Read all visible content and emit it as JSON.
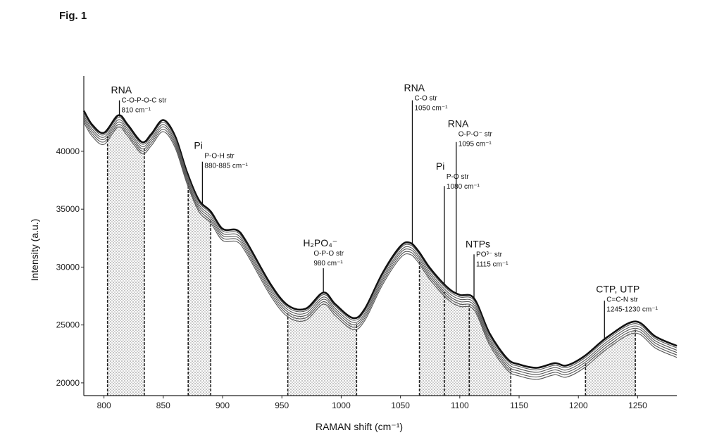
{
  "figure": {
    "label": "Fig. 1"
  },
  "chart_data": {
    "type": "line",
    "xlabel": "RAMAN shift (cm⁻¹)",
    "ylabel": "Intensity (a.u.)",
    "xlim": [
      783,
      1283
    ],
    "ylim": [
      18900,
      46500
    ],
    "x_ticks": [
      800,
      850,
      900,
      950,
      1000,
      1050,
      1100,
      1150,
      1200,
      1250
    ],
    "x_tick_labels": [
      "800",
      "850",
      "900",
      "950",
      "1000",
      "1050",
      "1100",
      "1150",
      "1200",
      "1250"
    ],
    "y_ticks": [
      20000,
      25000,
      30000,
      35000,
      40000
    ],
    "y_tick_labels": [
      "20000",
      "25000",
      "30000",
      "35000",
      "40000"
    ],
    "series_count": 6,
    "spectrum_points": [
      [
        783,
        43500
      ],
      [
        790,
        42300
      ],
      [
        800,
        41600
      ],
      [
        812,
        43100
      ],
      [
        820,
        42300
      ],
      [
        832,
        40800
      ],
      [
        840,
        41500
      ],
      [
        850,
        42700
      ],
      [
        860,
        41300
      ],
      [
        870,
        38200
      ],
      [
        880,
        35800
      ],
      [
        890,
        34800
      ],
      [
        900,
        33300
      ],
      [
        912,
        33200
      ],
      [
        920,
        32200
      ],
      [
        940,
        28600
      ],
      [
        955,
        26700
      ],
      [
        970,
        26400
      ],
      [
        985,
        27800
      ],
      [
        995,
        26800
      ],
      [
        1010,
        25600
      ],
      [
        1020,
        26400
      ],
      [
        1035,
        29500
      ],
      [
        1050,
        31800
      ],
      [
        1058,
        32100
      ],
      [
        1065,
        31400
      ],
      [
        1075,
        29900
      ],
      [
        1090,
        28200
      ],
      [
        1100,
        27600
      ],
      [
        1112,
        27300
      ],
      [
        1125,
        24300
      ],
      [
        1140,
        22100
      ],
      [
        1150,
        21600
      ],
      [
        1165,
        21300
      ],
      [
        1180,
        21700
      ],
      [
        1190,
        21500
      ],
      [
        1205,
        22300
      ],
      [
        1225,
        24000
      ],
      [
        1248,
        25300
      ],
      [
        1265,
        24000
      ],
      [
        1283,
        23200
      ]
    ],
    "series_offsets": [
      0,
      -180,
      -380,
      -580,
      -790,
      -1000
    ],
    "shaded_regions": [
      [
        803,
        834
      ],
      [
        871,
        890
      ],
      [
        955,
        1013
      ],
      [
        1066,
        1087
      ],
      [
        1087,
        1108
      ],
      [
        1108,
        1143
      ],
      [
        1206,
        1248
      ]
    ],
    "annotation_lines": [
      {
        "x": 813,
        "y_top": 44400
      },
      {
        "x": 883,
        "y_top": 39100
      },
      {
        "x": 985,
        "y_top": 29900
      },
      {
        "x": 1060,
        "y_top": 44400
      },
      {
        "x": 1087,
        "y_top": 37000
      },
      {
        "x": 1097,
        "y_top": 40800
      },
      {
        "x": 1112,
        "y_top": 31100
      },
      {
        "x": 1222,
        "y_top": 27100
      }
    ],
    "annotations": [
      {
        "group": "RNA",
        "lines": [
          "C-O-P-O-C str",
          "810 cm⁻¹"
        ],
        "anchor_x": 813,
        "title_y": 45000
      },
      {
        "group": "Pi",
        "lines": [
          "P-O-H str",
          "880-885 cm⁻¹"
        ],
        "anchor_x": 883,
        "title_y": 40200
      },
      {
        "group": "H₂PO₄⁻",
        "lines": [
          "O-P-O str",
          "980 cm⁻¹"
        ],
        "anchor_x": 975,
        "title_y": 31800
      },
      {
        "group": "RNA",
        "lines": [
          "C-O str",
          "1050 cm⁻¹"
        ],
        "anchor_x": 1060,
        "title_y": 45200
      },
      {
        "group": "Pi",
        "lines": [
          "P-O str",
          "1080 cm⁻¹"
        ],
        "anchor_x": 1087,
        "title_y": 38400
      },
      {
        "group": "RNA",
        "lines": [
          "O-P-O⁻ str",
          "1095 cm⁻¹"
        ],
        "anchor_x": 1097,
        "title_y": 42100
      },
      {
        "group": "NTPs",
        "lines": [
          "PO³⁻ str",
          "1115 cm⁻¹"
        ],
        "anchor_x": 1112,
        "title_y": 31700
      },
      {
        "group": "CTP, UTP",
        "lines": [
          "C=C-N str",
          "1245-1230 cm⁻¹"
        ],
        "anchor_x": 1222,
        "title_y": 27800
      }
    ]
  }
}
